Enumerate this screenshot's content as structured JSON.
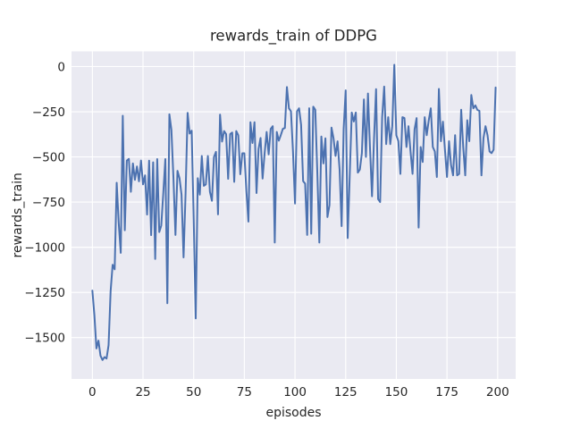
{
  "figure": {
    "title": "rewards_train of DDPG"
  },
  "chart_data": {
    "type": "line",
    "title": "rewards_train of DDPG",
    "xlabel": "episodes",
    "ylabel": "rewards_train",
    "x_ticks": [
      0,
      25,
      50,
      75,
      100,
      125,
      150,
      175,
      200
    ],
    "x_tick_labels": [
      "0",
      "25",
      "50",
      "75",
      "100",
      "125",
      "150",
      "175",
      "200"
    ],
    "y_ticks": [
      0,
      -250,
      -500,
      -750,
      -1000,
      -1250,
      -1500
    ],
    "y_tick_labels": [
      "0",
      "−250",
      "−500",
      "−750",
      "−1000",
      "−1250",
      "−1500"
    ],
    "xlim": [
      -10.3,
      208.9
    ],
    "ylim": [
      -1729,
      84
    ],
    "grid": true,
    "legend": false,
    "style": {
      "figure_background": "#ffffff",
      "axes_background": "#eaeaf2",
      "grid_color": "#ffffff",
      "line_color": "#4c72b0",
      "text_color": "#262626",
      "line_width": 2,
      "grid_width": 1.15
    },
    "series": [
      {
        "name": "rewards_train",
        "x_start": 0,
        "x_step": 1,
        "values": [
          -1240,
          -1376,
          -1560,
          -1517,
          -1600,
          -1624,
          -1608,
          -1616,
          -1542,
          -1244,
          -1097,
          -1122,
          -643,
          -866,
          -1031,
          -272,
          -906,
          -520,
          -511,
          -693,
          -536,
          -627,
          -553,
          -635,
          -520,
          -652,
          -602,
          -819,
          -521,
          -933,
          -530,
          -1065,
          -512,
          -916,
          -880,
          -700,
          -512,
          -1310,
          -264,
          -350,
          -615,
          -932,
          -577,
          -618,
          -709,
          -1056,
          -700,
          -256,
          -371,
          -355,
          -841,
          -1394,
          -618,
          -709,
          -495,
          -660,
          -652,
          -495,
          -693,
          -743,
          -500,
          -472,
          -818,
          -266,
          -415,
          -357,
          -374,
          -621,
          -374,
          -365,
          -638,
          -357,
          -380,
          -596,
          -480,
          -480,
          -688,
          -858,
          -308,
          -423,
          -308,
          -700,
          -456,
          -395,
          -620,
          -480,
          -362,
          -486,
          -345,
          -330,
          -974,
          -362,
          -410,
          -379,
          -345,
          -340,
          -113,
          -231,
          -248,
          -470,
          -758,
          -248,
          -231,
          -322,
          -634,
          -648,
          -932,
          -231,
          -925,
          -222,
          -239,
          -585,
          -974,
          -387,
          -536,
          -397,
          -833,
          -767,
          -338,
          -397,
          -495,
          -414,
          -570,
          -883,
          -346,
          -132,
          -949,
          -603,
          -254,
          -304,
          -254,
          -587,
          -570,
          -479,
          -182,
          -500,
          -149,
          -450,
          -718,
          -397,
          -125,
          -734,
          -750,
          -280,
          -111,
          -429,
          -280,
          -429,
          -330,
          10,
          -380,
          -413,
          -594,
          -280,
          -285,
          -445,
          -330,
          -470,
          -594,
          -347,
          -285,
          -891,
          -445,
          -528,
          -280,
          -380,
          -297,
          -231,
          -445,
          -470,
          -611,
          -124,
          -413,
          -305,
          -462,
          -611,
          -413,
          -545,
          -602,
          -380,
          -602,
          -594,
          -239,
          -445,
          -602,
          -297,
          -413,
          -157,
          -231,
          -215,
          -240,
          -245,
          -602,
          -396,
          -330,
          -380,
          -470,
          -479,
          -460,
          -116
        ]
      }
    ]
  }
}
